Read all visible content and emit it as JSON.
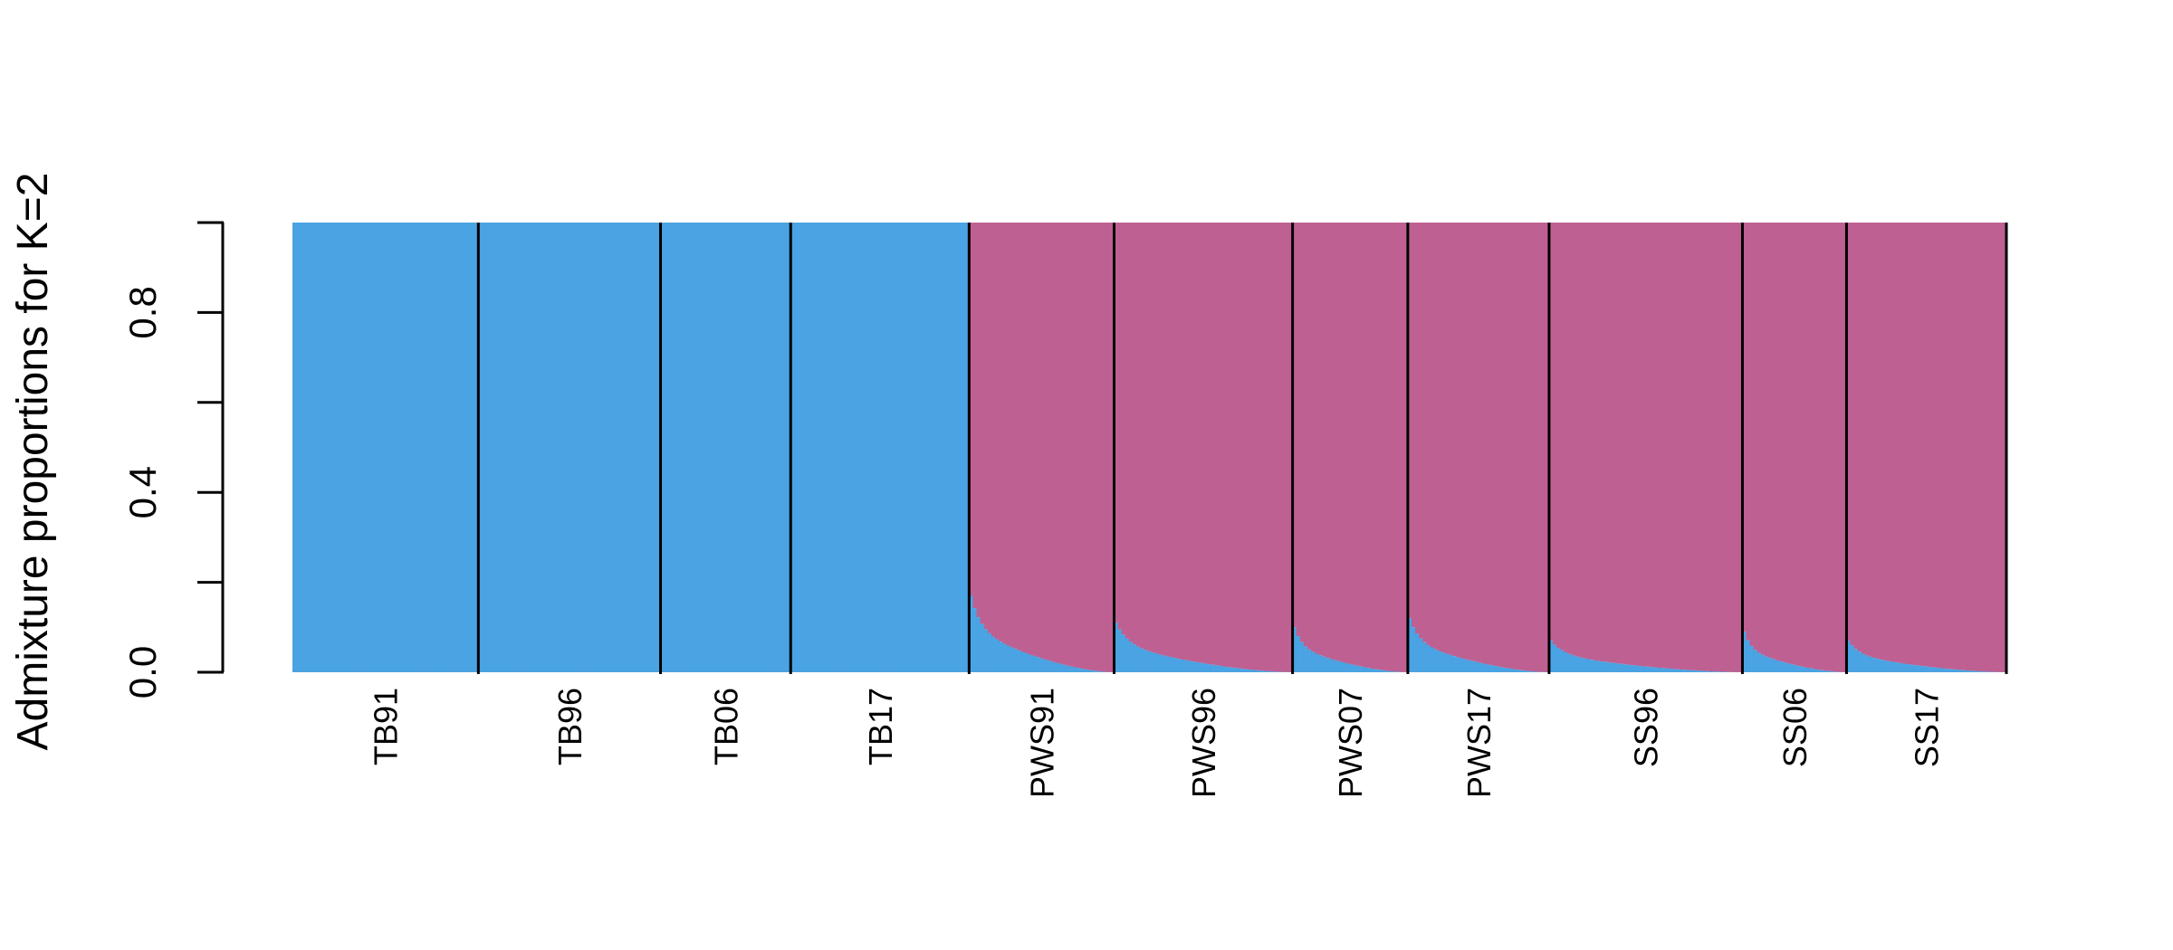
{
  "chart_data": {
    "type": "bar",
    "subtype": "stacked-admixture",
    "ylabel": "Admixture proportions for K=2",
    "ylim": [
      0,
      1
    ],
    "y_ticks": [
      0,
      0.2,
      0.4,
      0.6,
      0.8,
      1.0
    ],
    "y_tick_labels": [
      "0.0",
      "0.4",
      "0.8"
    ],
    "y_tick_labels_at": [
      0,
      0.4,
      0.8
    ],
    "grid": false,
    "legend": "none",
    "cluster_colors": {
      "cluster1": "#4AA3E2",
      "cluster2": "#BE6092"
    },
    "populations": [
      {
        "name": "TB91",
        "n": 50,
        "cluster1_max": 1.0,
        "cluster1_tail": 1.0
      },
      {
        "name": "TB96",
        "n": 49,
        "cluster1_max": 1.0,
        "cluster1_tail": 1.0
      },
      {
        "name": "TB06",
        "n": 35,
        "cluster1_max": 1.0,
        "cluster1_tail": 1.0
      },
      {
        "name": "TB17",
        "n": 48,
        "cluster1_max": 1.0,
        "cluster1_tail": 1.0
      },
      {
        "name": "PWS91",
        "n": 39,
        "cluster1_max": 0.17,
        "cluster1_tail": 0.0
      },
      {
        "name": "PWS96",
        "n": 48,
        "cluster1_max": 0.11,
        "cluster1_tail": 0.0
      },
      {
        "name": "PWS07",
        "n": 31,
        "cluster1_max": 0.1,
        "cluster1_tail": 0.0
      },
      {
        "name": "PWS17",
        "n": 38,
        "cluster1_max": 0.12,
        "cluster1_tail": 0.0
      },
      {
        "name": "SS96",
        "n": 52,
        "cluster1_max": 0.07,
        "cluster1_tail": 0.0
      },
      {
        "name": "SS06",
        "n": 28,
        "cluster1_max": 0.09,
        "cluster1_tail": 0.0
      },
      {
        "name": "SS17",
        "n": 43,
        "cluster1_max": 0.07,
        "cluster1_tail": 0.0
      }
    ]
  }
}
